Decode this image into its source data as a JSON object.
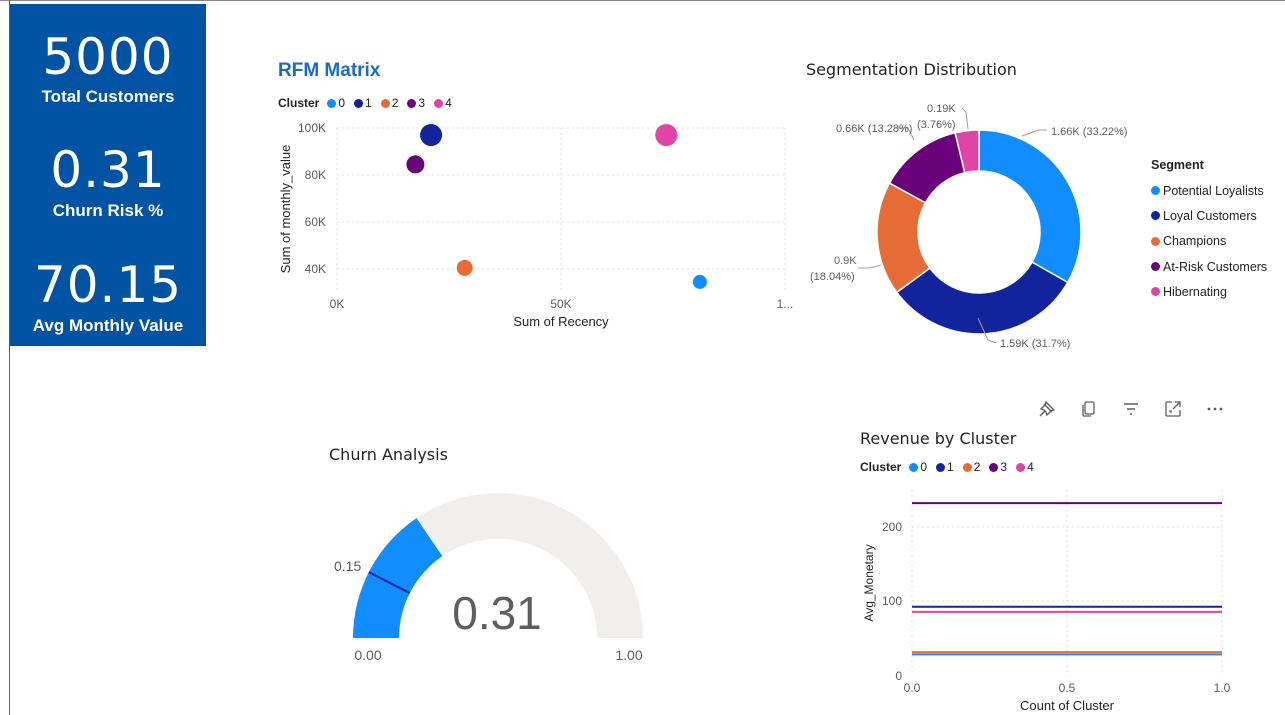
{
  "kpis": {
    "total_customers": {
      "value": "5000",
      "label": "Total Customers"
    },
    "churn_risk": {
      "value": "0.31",
      "label": "Churn Risk %"
    },
    "avg_monthly_value": {
      "value": "70.15",
      "label": "Avg Monthly Value"
    }
  },
  "colors": {
    "kpi_bg": "#0052A2",
    "cluster_0": "#118DFF",
    "cluster_1": "#12239E",
    "cluster_2": "#E66C37",
    "cluster_3": "#6B007B",
    "cluster_4": "#E044A7",
    "title_blue": "#1A6BC8"
  },
  "rfm": {
    "title": "RFM Matrix",
    "legend_title": "Cluster",
    "legend": [
      "0",
      "1",
      "2",
      "3",
      "4"
    ],
    "xlabel": "Sum of Recency",
    "ylabel": "Sum of monthly_value",
    "x_ticks": [
      "0K",
      "50K",
      "1..."
    ],
    "y_ticks": [
      "100K",
      "80K",
      "60K",
      "40K"
    ]
  },
  "segmentation": {
    "title": "Segmentation Distribution",
    "legend_title": "Segment",
    "segments": [
      "Potential Loyalists",
      "Loyal Customers",
      "Champions",
      "At-Risk Customers",
      "Hibernating"
    ],
    "labels": {
      "potential": "1.66K (33.22%)",
      "loyal": "1.59K (31.7%)",
      "champions_1": "0.9K",
      "champions_2": "(18.04%)",
      "atrisk": "0.66K (13.28%)",
      "hibernating_1": "0.19K",
      "hibernating_2": "(3.76%)"
    }
  },
  "churn": {
    "title": "Churn Analysis",
    "value_label": "0.31",
    "min_label": "0.00",
    "max_label": "1.00",
    "target_label": "0.15"
  },
  "revenue": {
    "title": "Revenue by Cluster",
    "legend_title": "Cluster",
    "legend": [
      "0",
      "1",
      "2",
      "3",
      "4"
    ],
    "xlabel": "Count of Cluster",
    "ylabel": "Avg_Monetary",
    "x_ticks": [
      "0.0",
      "0.5",
      "1.0"
    ],
    "y_ticks": [
      "200",
      "100",
      "0"
    ]
  },
  "toolbar_icons": [
    "pin-icon",
    "copy-icon",
    "filter-icon",
    "focus-mode-icon",
    "more-options-icon"
  ],
  "chart_data": [
    {
      "type": "scatter",
      "title": "RFM Matrix",
      "xlabel": "Sum of Recency",
      "ylabel": "Sum of monthly_value",
      "xlim": [
        0,
        100000
      ],
      "ylim": [
        30000,
        100000
      ],
      "series": [
        {
          "name": "0",
          "color": "#118DFF",
          "points": [
            {
              "x": 81000,
              "y": 34500
            }
          ]
        },
        {
          "name": "1",
          "color": "#12239E",
          "points": [
            {
              "x": 21000,
              "y": 97000
            }
          ]
        },
        {
          "name": "2",
          "color": "#E66C37",
          "points": [
            {
              "x": 28500,
              "y": 40500
            }
          ]
        },
        {
          "name": "3",
          "color": "#6B007B",
          "points": [
            {
              "x": 17500,
              "y": 84500
            }
          ]
        },
        {
          "name": "4",
          "color": "#E044A7",
          "points": [
            {
              "x": 73500,
              "y": 97000
            }
          ]
        }
      ]
    },
    {
      "type": "pie",
      "title": "Segmentation Distribution",
      "donut": true,
      "slices": [
        {
          "name": "Potential Loyalists",
          "value": 1660,
          "percent": 33.22,
          "color": "#118DFF"
        },
        {
          "name": "Loyal Customers",
          "value": 1590,
          "percent": 31.7,
          "color": "#12239E"
        },
        {
          "name": "Champions",
          "value": 900,
          "percent": 18.04,
          "color": "#E66C37"
        },
        {
          "name": "At-Risk Customers",
          "value": 660,
          "percent": 13.28,
          "color": "#6B007B"
        },
        {
          "name": "Hibernating",
          "value": 190,
          "percent": 3.76,
          "color": "#E044A7"
        }
      ]
    },
    {
      "type": "gauge",
      "title": "Churn Analysis",
      "value": 0.31,
      "min": 0,
      "max": 1,
      "target": 0.15,
      "fill_color": "#118DFF",
      "track_color": "#F0EFEE"
    },
    {
      "type": "line",
      "title": "Revenue by Cluster",
      "xlabel": "Count of Cluster",
      "ylabel": "Avg_Monetary",
      "xlim": [
        0,
        1
      ],
      "ylim": [
        0,
        240
      ],
      "series": [
        {
          "name": "0",
          "color": "#118DFF",
          "x": [
            0,
            1
          ],
          "values": [
            29,
            29
          ]
        },
        {
          "name": "1",
          "color": "#12239E",
          "x": [
            0,
            1
          ],
          "values": [
            93,
            93
          ]
        },
        {
          "name": "2",
          "color": "#E66C37",
          "x": [
            0,
            1
          ],
          "values": [
            32,
            32
          ]
        },
        {
          "name": "3",
          "color": "#6B007B",
          "x": [
            0,
            1
          ],
          "values": [
            232,
            232
          ]
        },
        {
          "name": "4",
          "color": "#E044A7",
          "x": [
            0,
            1
          ],
          "values": [
            86,
            86
          ]
        }
      ]
    }
  ]
}
